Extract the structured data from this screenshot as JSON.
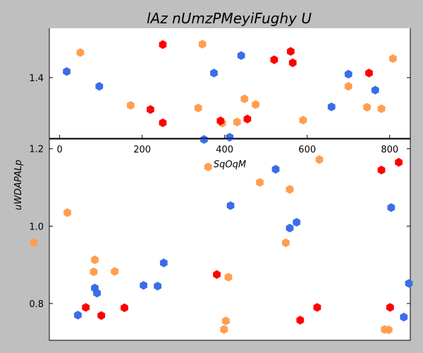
{
  "chart_data": [
    {
      "type": "scatter",
      "title": "lAz nUmzPMeyiFughy  U",
      "xlabel": "SqOqM",
      "ylabel": "",
      "xlim": [
        -25,
        850
      ],
      "ylim": [
        1.24,
        1.53
      ],
      "xticks": [
        0,
        200,
        400,
        600,
        800
      ],
      "yticks": [
        1.4
      ],
      "xtick_labels": [
        "0",
        "200",
        "400",
        "600",
        "800"
      ],
      "ytick_labels": [
        "1.4"
      ],
      "grid": false,
      "series": [
        {
          "color": "#3a6ee8",
          "points": [
            [
              17,
              1.416
            ],
            [
              96,
              1.377
            ],
            [
              374,
              1.412
            ],
            [
              440,
              1.458
            ],
            [
              412,
              1.243
            ],
            [
              350,
              1.237
            ],
            [
              659,
              1.323
            ],
            [
              700,
              1.409
            ],
            [
              765,
              1.367
            ]
          ]
        },
        {
          "color": "#ff9e50",
          "points": [
            [
              50,
              1.466
            ],
            [
              172,
              1.327
            ],
            [
              336,
              1.32
            ],
            [
              346,
              1.488
            ],
            [
              394,
              1.28
            ],
            [
              430,
              1.283
            ],
            [
              448,
              1.344
            ],
            [
              475,
              1.329
            ],
            [
              590,
              1.288
            ],
            [
              700,
              1.377
            ],
            [
              745,
              1.322
            ],
            [
              780,
              1.318
            ],
            [
              808,
              1.45
            ]
          ]
        },
        {
          "color": "#ff0000",
          "points": [
            [
              220,
              1.316
            ],
            [
              250,
              1.281
            ],
            [
              250,
              1.487
            ],
            [
              390,
              1.286
            ],
            [
              455,
              1.291
            ],
            [
              520,
              1.447
            ],
            [
              560,
              1.469
            ],
            [
              565,
              1.439
            ],
            [
              750,
              1.412
            ]
          ]
        }
      ]
    },
    {
      "type": "scatter",
      "title": "",
      "xlabel": "",
      "ylabel": "uWDAPALp",
      "xlim": [
        0,
        1
      ],
      "ylim": [
        0.705,
        1.225
      ],
      "xticks": [],
      "yticks": [
        0.8,
        1.0,
        1.2
      ],
      "ytick_labels": [
        "0.8",
        "1.0",
        "1.2"
      ],
      "grid": false,
      "series": [
        {
          "color": "#3a6ee8",
          "points": [
            [
              0.079,
              0.77
            ],
            [
              0.126,
              0.84
            ],
            [
              0.132,
              0.827
            ],
            [
              0.261,
              0.847
            ],
            [
              0.3,
              0.845
            ],
            [
              0.317,
              0.905
            ],
            [
              0.502,
              1.053
            ],
            [
              0.627,
              1.147
            ],
            [
              0.666,
              0.995
            ],
            [
              0.685,
              1.01
            ],
            [
              0.947,
              1.048
            ],
            [
              0.982,
              0.765
            ],
            [
              0.996,
              0.852
            ]
          ]
        },
        {
          "color": "#ff9e50",
          "points": [
            [
              -0.043,
              0.957
            ],
            [
              0.05,
              1.035
            ],
            [
              0.123,
              0.882
            ],
            [
              0.126,
              0.913
            ],
            [
              0.181,
              0.883
            ],
            [
              0.44,
              1.153
            ],
            [
              0.484,
              0.733
            ],
            [
              0.489,
              0.755
            ],
            [
              0.496,
              0.868
            ],
            [
              0.583,
              1.113
            ],
            [
              0.655,
              0.957
            ],
            [
              0.666,
              1.095
            ],
            [
              0.748,
              1.172
            ],
            [
              0.929,
              0.733
            ],
            [
              0.94,
              0.732
            ]
          ]
        },
        {
          "color": "#ff0000",
          "points": [
            [
              0.101,
              0.79
            ],
            [
              0.144,
              0.769
            ],
            [
              0.208,
              0.789
            ],
            [
              0.464,
              0.875
            ],
            [
              0.695,
              0.757
            ],
            [
              0.742,
              0.79
            ],
            [
              0.92,
              1.145
            ],
            [
              0.944,
              0.79
            ],
            [
              0.968,
              1.165
            ]
          ]
        }
      ]
    }
  ]
}
